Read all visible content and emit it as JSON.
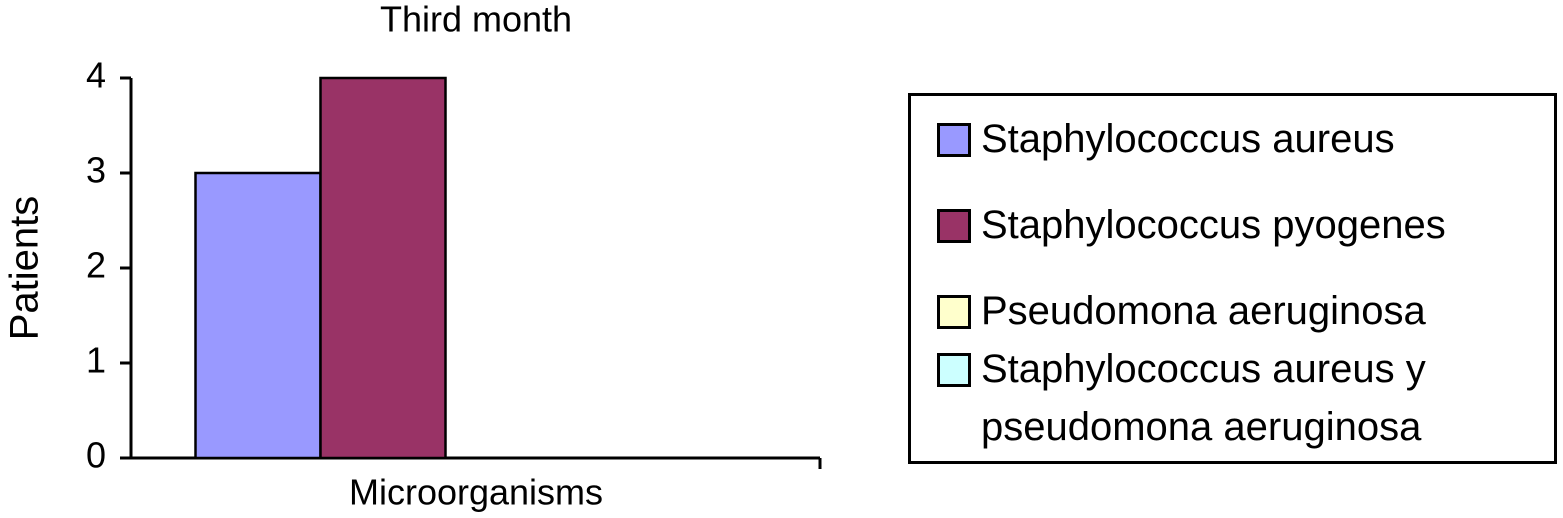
{
  "chart_data": {
    "type": "bar",
    "title": "Third month",
    "x_label": "Microorganisms",
    "y_label": "Patients",
    "categories": [
      "Microorganisms"
    ],
    "series": [
      {
        "name": "Staphylococcus aureus",
        "color": "#9999ff",
        "values": [
          3
        ]
      },
      {
        "name": "Staphylococcus pyogenes",
        "color": "#993366",
        "values": [
          4
        ]
      },
      {
        "name": "Pseudomona aeruginosa",
        "color": "#ffffcc",
        "values": [
          0
        ]
      },
      {
        "name": "Staphylococcus aureus y pseudomona aeruginosa",
        "color": "#ccffff",
        "values": [
          0
        ]
      }
    ],
    "ylim": [
      0,
      4
    ],
    "yticks": [
      0,
      1,
      2,
      3,
      4
    ],
    "grid": false,
    "legend_position": "right"
  }
}
